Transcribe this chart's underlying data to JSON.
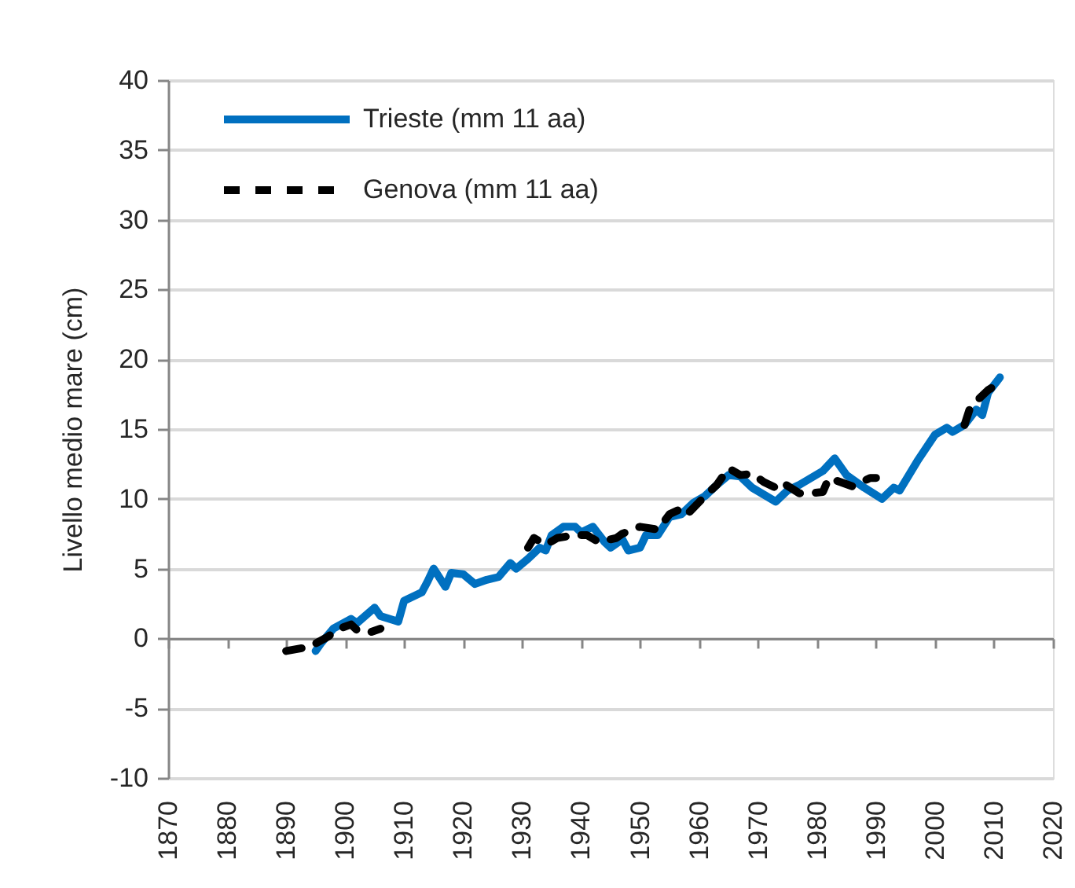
{
  "chart_data": {
    "type": "line",
    "ylabel": "Livello medio mare (cm)",
    "xlim": [
      1870,
      2020
    ],
    "ylim": [
      -10,
      40
    ],
    "xticks": [
      1870,
      1880,
      1890,
      1900,
      1910,
      1920,
      1930,
      1940,
      1950,
      1960,
      1970,
      1980,
      1990,
      2000,
      2010,
      2020
    ],
    "yticks": [
      -10,
      -5,
      0,
      5,
      10,
      15,
      20,
      25,
      30,
      35,
      40
    ],
    "grid": "y",
    "legend": "top left",
    "series": [
      {
        "name": "Trieste (mm 11 aa)",
        "color": "#0070c0",
        "line_style": "solid",
        "x": [
          1895,
          1896,
          1898,
          1901,
          1902,
          1905,
          1906,
          1909,
          1910,
          1913,
          1914,
          1915,
          1917,
          1918,
          1920,
          1922,
          1924,
          1926,
          1928,
          1929,
          1931,
          1933,
          1934,
          1935,
          1937,
          1939,
          1940,
          1942,
          1944,
          1945,
          1947,
          1948,
          1950,
          1951,
          1953,
          1955,
          1957,
          1959,
          1961,
          1963,
          1965,
          1967,
          1969,
          1973,
          1975,
          1977,
          1981,
          1983,
          1985,
          1988,
          1991,
          1993,
          1994,
          1997,
          2000,
          2002,
          2003,
          2005,
          2007,
          2008,
          2009,
          2011
        ],
        "values": [
          -0.9,
          -0.3,
          0.7,
          1.4,
          1.1,
          2.2,
          1.6,
          1.2,
          2.7,
          3.3,
          4.1,
          5.0,
          3.7,
          4.7,
          4.6,
          3.9,
          4.2,
          4.4,
          5.4,
          5.0,
          5.7,
          6.5,
          6.3,
          7.4,
          8.0,
          8.0,
          7.6,
          8.0,
          6.9,
          6.5,
          7.1,
          6.3,
          6.5,
          7.4,
          7.4,
          8.7,
          8.9,
          9.7,
          10.2,
          11.0,
          11.7,
          11.6,
          10.8,
          9.8,
          10.6,
          11.0,
          12.0,
          12.9,
          11.7,
          10.8,
          10.0,
          10.8,
          10.6,
          12.7,
          14.6,
          15.1,
          14.8,
          15.3,
          16.4,
          16.0,
          17.6,
          18.7
        ]
      },
      {
        "name": "Genova (mm 11 aa)",
        "color": "#000000",
        "line_style": "dashed",
        "x": [
          1890,
          1894,
          1897,
          1899,
          1901,
          1902,
          1904,
          1906,
          1918,
          1931,
          1932,
          1934,
          1936,
          1939,
          1941,
          1943,
          1946,
          1947,
          1950,
          1953,
          1955,
          1957,
          1958,
          1961,
          1963,
          1965,
          1967,
          1969,
          1971,
          1973,
          1974,
          1977,
          1979,
          1981,
          1982,
          1986,
          1989,
          1990,
          1997,
          2005,
          2006,
          2009,
          2011
        ],
        "values": [
          -0.9,
          -0.6,
          0.1,
          0.7,
          1.0,
          0.6,
          0.4,
          0.7,
          null,
          6.5,
          7.2,
          6.7,
          7.2,
          7.4,
          7.4,
          6.9,
          7.2,
          7.5,
          8.0,
          7.8,
          8.9,
          9.3,
          8.9,
          10.2,
          11.0,
          12.2,
          11.7,
          11.8,
          11.2,
          10.8,
          11.2,
          10.4,
          10.4,
          10.5,
          11.5,
          10.9,
          11.5,
          11.5,
          null,
          15.3,
          16.6,
          17.8,
          18.3
        ]
      }
    ]
  }
}
